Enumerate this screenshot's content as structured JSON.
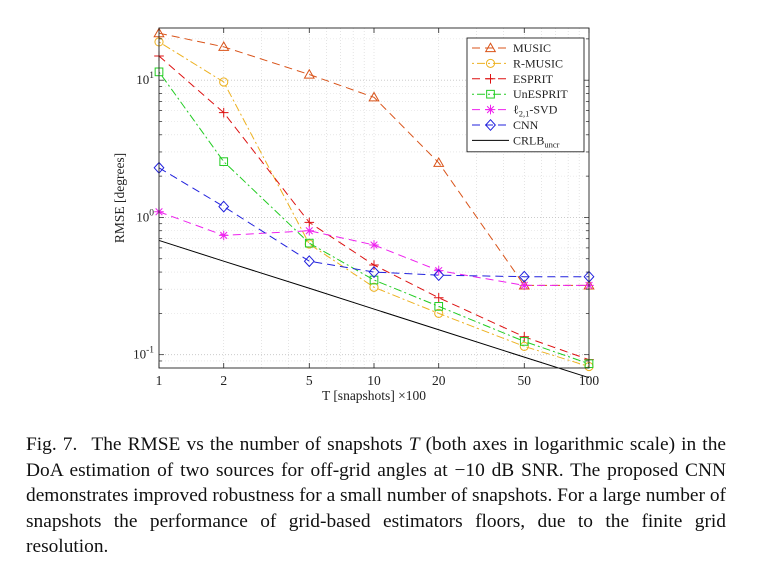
{
  "chart_data": {
    "type": "line",
    "xlabel": "T [snapshots] ×100",
    "ylabel": "RMSE [degrees]",
    "xscale": "log",
    "yscale": "log",
    "xlim": [
      1,
      100
    ],
    "ylim": [
      0.08,
      24
    ],
    "x": [
      1,
      2,
      5,
      10,
      20,
      50,
      100
    ],
    "x_tick_labels": [
      "1",
      "2",
      "5",
      "10",
      "20",
      "50",
      "100"
    ],
    "y_ticks": [
      {
        "value": 10,
        "base": "10",
        "exp": "1"
      },
      {
        "value": 1,
        "base": "10",
        "exp": "0"
      },
      {
        "value": 0.1,
        "base": "10",
        "exp": "-1"
      }
    ],
    "grid": true,
    "legend_position": "top-right",
    "series": [
      {
        "name": "MUSIC",
        "color": "#d95319",
        "dash": "8,5",
        "marker": "triangle",
        "values": [
          22,
          17.5,
          11,
          7.5,
          2.5,
          0.32,
          0.32
        ]
      },
      {
        "name": "R-MUSIC",
        "color": "#edb120",
        "dash": "2,3,8,3",
        "marker": "circle",
        "values": [
          19,
          9.7,
          0.64,
          0.31,
          0.2,
          0.115,
          0.082
        ]
      },
      {
        "name": "ESPRIT",
        "color": "#dd1111",
        "dash": "8,5",
        "marker": "plus",
        "values": [
          15,
          5.8,
          0.92,
          0.45,
          0.26,
          0.135,
          0.092
        ]
      },
      {
        "name": "UnESPRIT",
        "color": "#22cc22",
        "dash": "2,3,8,3",
        "marker": "square",
        "values": [
          11.5,
          2.55,
          0.65,
          0.35,
          0.225,
          0.125,
          0.086
        ]
      },
      {
        "name": "ℓ2,1-SVD",
        "name_base": "ℓ",
        "name_sub": "2,1",
        "name_suffix": "-SVD",
        "color": "#ee22ee",
        "dash": "8,5",
        "marker": "star",
        "values": [
          1.1,
          0.74,
          0.8,
          0.63,
          0.41,
          0.32,
          0.32
        ]
      },
      {
        "name": "CNN",
        "color": "#2222dd",
        "dash": "8,5",
        "marker": "diamond",
        "values": [
          2.3,
          1.2,
          0.48,
          0.4,
          0.38,
          0.37,
          0.37
        ]
      },
      {
        "name": "CRLBuncr",
        "name_base": "CRLB",
        "name_sub": "uncr",
        "name_suffix": "",
        "color": "#000000",
        "dash": "",
        "marker": "none",
        "values": [
          0.68,
          0.48,
          0.305,
          0.215,
          0.152,
          0.096,
          0.068
        ]
      }
    ]
  },
  "caption": {
    "label": "Fig. 7.",
    "part1": "The RMSE vs the number of snapshots ",
    "math_T": "T",
    "part2": " (both axes in logarithmic scale) in the DoA estimation of two sources for off-grid angles at −10 dB SNR. The proposed CNN demonstrates improved robustness for a small number of snapshots. For a large number of snapshots the performance of grid-based estimators floors, due to the finite grid resolution."
  }
}
